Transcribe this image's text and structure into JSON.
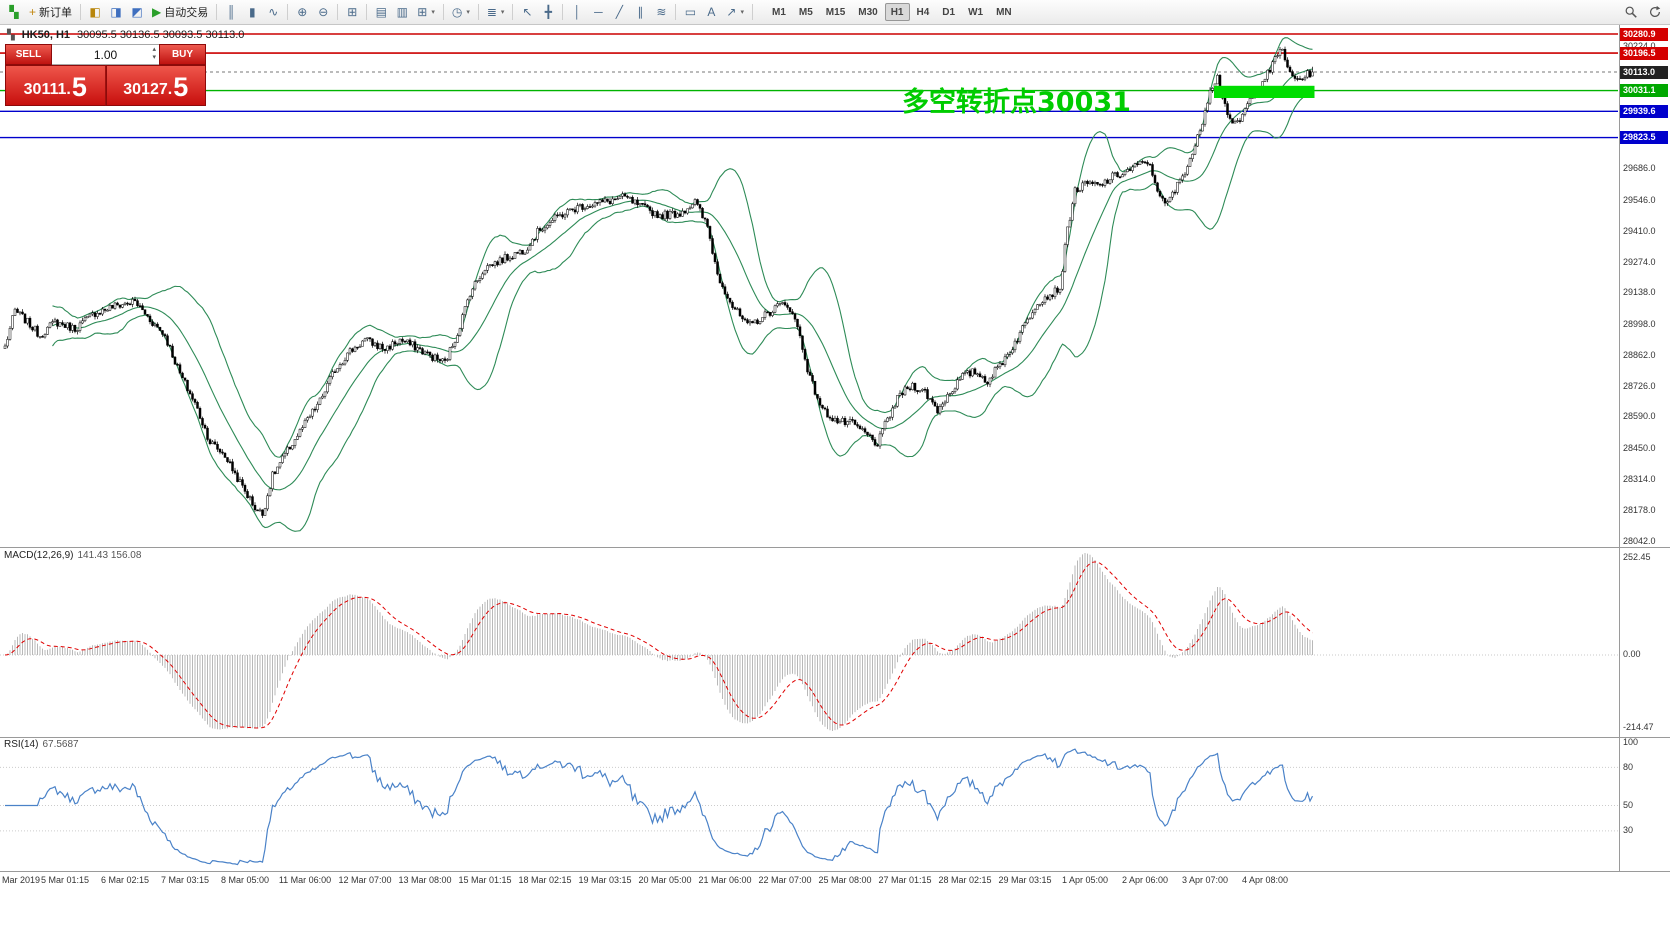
{
  "toolbar": {
    "caret_glyph": "▾",
    "items": [
      {
        "name": "terminal-icon",
        "glyph": "▚",
        "color": "#2a9f2a"
      },
      {
        "name": "new-order-button",
        "glyph": "+",
        "color": "#c28712",
        "label": "新订单"
      },
      {
        "sep": true
      },
      {
        "name": "market-watch-icon",
        "glyph": "◧",
        "color": "#b8860b"
      },
      {
        "name": "data-window-icon",
        "glyph": "◨",
        "color": "#3f6fbf"
      },
      {
        "name": "navigator-icon",
        "glyph": "◩",
        "color": "#3f6fbf"
      },
      {
        "name": "autotrade-button",
        "glyph": "▶",
        "color": "#2a9f2a",
        "label": "自动交易"
      },
      {
        "sep": true
      },
      {
        "name": "bars-chart-icon",
        "glyph": "║"
      },
      {
        "name": "candlestick-chart-icon",
        "glyph": "▮"
      },
      {
        "name": "line-chart-icon",
        "glyph": "∿"
      },
      {
        "sep": true
      },
      {
        "name": "zoom-in-icon",
        "glyph": "⊕"
      },
      {
        "name": "zoom-out-icon",
        "glyph": "⊖"
      },
      {
        "sep": true
      },
      {
        "name": "tile-windows-icon",
        "glyph": "⊞"
      },
      {
        "sep": true
      },
      {
        "name": "cascade-windows-icon",
        "glyph": "▤"
      },
      {
        "name": "arrange-windows-icon",
        "glyph": "▥"
      },
      {
        "name": "new-chart-icon",
        "glyph": "⊞",
        "caret": true
      },
      {
        "sep": true
      },
      {
        "name": "period-clock-icon",
        "glyph": "◷",
        "caret": true
      },
      {
        "sep": true
      },
      {
        "name": "indicators-icon",
        "glyph": "≣",
        "caret": true
      },
      {
        "sep": true
      },
      {
        "name": "cursor-icon",
        "glyph": "↖"
      },
      {
        "name": "crosshair-icon",
        "glyph": "╋"
      },
      {
        "sep": true
      },
      {
        "name": "vertical-line-icon",
        "glyph": "│"
      },
      {
        "name": "horizontal-line-icon",
        "glyph": "─"
      },
      {
        "name": "trendline-icon",
        "glyph": "╱"
      },
      {
        "name": "equidistant-channel-icon",
        "glyph": "∥"
      },
      {
        "name": "fibonacci-icon",
        "glyph": "≋"
      },
      {
        "sep": true
      },
      {
        "name": "shapes-icon",
        "glyph": "▭"
      },
      {
        "name": "text-label-icon",
        "glyph": "A"
      },
      {
        "name": "arrow-tools-icon",
        "glyph": "↗",
        "caret": true
      },
      {
        "sep": true
      }
    ],
    "timeframes": {
      "items": [
        "M1",
        "M5",
        "M15",
        "M30",
        "H1",
        "H4",
        "D1",
        "W1",
        "MN"
      ],
      "active": "H1"
    },
    "right_items": [
      {
        "name": "search-icon"
      },
      {
        "name": "refresh-icon"
      }
    ]
  },
  "chart_header": {
    "icon": "▚",
    "symbol": "HK50, H1",
    "ohlc": "30095.5 30136.5 30093.5 30113.0"
  },
  "order_panel": {
    "sell_label": "SELL",
    "buy_label": "BUY",
    "volume": "1.00",
    "vol_up_glyph": "▴",
    "vol_down_glyph": "▾",
    "sell_price": {
      "main": "30111.",
      "big": "5"
    },
    "buy_price": {
      "main": "30127.",
      "big": "5"
    }
  },
  "annotation": {
    "text": "多空转折点30031",
    "color": "#00cc00"
  },
  "chart_data": {
    "type": "candlestick",
    "symbol": "HK50",
    "timeframe": "H1",
    "current_ohlc": {
      "open": 30095.5,
      "high": 30136.5,
      "low": 30093.5,
      "close": 30113.0
    },
    "price_axis_ticks": [
      "30224.0",
      "29686.0",
      "29546.0",
      "29410.0",
      "29274.0",
      "29138.0",
      "28998.0",
      "28862.0",
      "28726.0",
      "28590.0",
      "28450.0",
      "28314.0",
      "28178.0",
      "28042.0"
    ],
    "level_lines": [
      {
        "price": 30280.9,
        "label": "30280.9",
        "color": "#cc0000",
        "box": "#d40000",
        "style": "solid"
      },
      {
        "price": 30196.5,
        "label": "30196.5",
        "color": "#cc0000",
        "box": "#d40000",
        "style": "solid"
      },
      {
        "price": 30113.0,
        "label": "30113.0",
        "color": "#777777",
        "box": "#222222",
        "style": "dashed"
      },
      {
        "price": 30031.1,
        "label": "30031.1",
        "color": "#00b300",
        "box": "#00a800",
        "style": "solid"
      },
      {
        "price": 29939.6,
        "label": "29939.6",
        "color": "#0000cc",
        "box": "#0000cc",
        "style": "solid"
      },
      {
        "price": 29823.5,
        "label": "29823.5",
        "color": "#0000cc",
        "box": "#0000cc",
        "style": "solid"
      }
    ],
    "highlight_zone": {
      "start_index": 484,
      "end_index": 523,
      "price_top": 30052,
      "price_bottom": 29998,
      "color": "#00dd00"
    },
    "x_labels": [
      "Mar 2019",
      "5 Mar 01:15",
      "6 Mar 02:15",
      "7 Mar 03:15",
      "8 Mar 05:00",
      "11 Mar 06:00",
      "12 Mar 07:00",
      "13 Mar 08:00",
      "15 Mar 01:15",
      "18 Mar 02:15",
      "19 Mar 03:15",
      "20 Mar 05:00",
      "21 Mar 06:00",
      "22 Mar 07:00",
      "25 Mar 08:00",
      "27 Mar 01:15",
      "28 Mar 02:15",
      "29 Mar 03:15",
      "1 Apr 05:00",
      "2 Apr 06:00",
      "3 Apr 07:00",
      "4 Apr 08:00"
    ],
    "x_label_indices": [
      0,
      24,
      48,
      72,
      96,
      120,
      144,
      168,
      192,
      216,
      240,
      264,
      288,
      312,
      336,
      360,
      384,
      408,
      432,
      456,
      480,
      504
    ],
    "candle_count": 524,
    "noise_amplitude": 18,
    "price_anchors": [
      [
        0,
        28900
      ],
      [
        4,
        29060
      ],
      [
        8,
        29020
      ],
      [
        14,
        28950
      ],
      [
        20,
        29010
      ],
      [
        28,
        28980
      ],
      [
        36,
        29050
      ],
      [
        44,
        29080
      ],
      [
        52,
        29100
      ],
      [
        58,
        29020
      ],
      [
        64,
        28950
      ],
      [
        70,
        28780
      ],
      [
        76,
        28650
      ],
      [
        82,
        28480
      ],
      [
        88,
        28420
      ],
      [
        94,
        28300
      ],
      [
        100,
        28190
      ],
      [
        103,
        28160
      ],
      [
        107,
        28330
      ],
      [
        113,
        28440
      ],
      [
        120,
        28560
      ],
      [
        126,
        28660
      ],
      [
        132,
        28800
      ],
      [
        138,
        28880
      ],
      [
        144,
        28930
      ],
      [
        152,
        28890
      ],
      [
        158,
        28930
      ],
      [
        164,
        28900
      ],
      [
        170,
        28860
      ],
      [
        176,
        28830
      ],
      [
        181,
        28960
      ],
      [
        186,
        29140
      ],
      [
        192,
        29250
      ],
      [
        200,
        29290
      ],
      [
        208,
        29330
      ],
      [
        214,
        29420
      ],
      [
        222,
        29480
      ],
      [
        230,
        29520
      ],
      [
        240,
        29540
      ],
      [
        248,
        29560
      ],
      [
        254,
        29520
      ],
      [
        262,
        29480
      ],
      [
        270,
        29490
      ],
      [
        276,
        29540
      ],
      [
        281,
        29430
      ],
      [
        285,
        29220
      ],
      [
        291,
        29080
      ],
      [
        297,
        28990
      ],
      [
        303,
        29030
      ],
      [
        309,
        29080
      ],
      [
        313,
        29090
      ],
      [
        317,
        28990
      ],
      [
        322,
        28760
      ],
      [
        327,
        28620
      ],
      [
        333,
        28570
      ],
      [
        339,
        28560
      ],
      [
        345,
        28510
      ],
      [
        349,
        28470
      ],
      [
        353,
        28580
      ],
      [
        358,
        28690
      ],
      [
        363,
        28730
      ],
      [
        368,
        28700
      ],
      [
        373,
        28620
      ],
      [
        378,
        28700
      ],
      [
        383,
        28770
      ],
      [
        388,
        28790
      ],
      [
        393,
        28750
      ],
      [
        398,
        28820
      ],
      [
        403,
        28900
      ],
      [
        408,
        29000
      ],
      [
        413,
        29100
      ],
      [
        418,
        29130
      ],
      [
        422,
        29160
      ],
      [
        425,
        29420
      ],
      [
        428,
        29590
      ],
      [
        433,
        29620
      ],
      [
        438,
        29610
      ],
      [
        443,
        29650
      ],
      [
        448,
        29670
      ],
      [
        453,
        29700
      ],
      [
        457,
        29720
      ],
      [
        461,
        29600
      ],
      [
        464,
        29520
      ],
      [
        468,
        29590
      ],
      [
        472,
        29680
      ],
      [
        476,
        29780
      ],
      [
        479,
        29900
      ],
      [
        482,
        30040
      ],
      [
        485,
        30090
      ],
      [
        488,
        29970
      ],
      [
        491,
        29870
      ],
      [
        494,
        29900
      ],
      [
        498,
        29990
      ],
      [
        502,
        30060
      ],
      [
        506,
        30120
      ],
      [
        509,
        30190
      ],
      [
        511,
        30225
      ],
      [
        513,
        30120
      ],
      [
        516,
        30080
      ],
      [
        519,
        30090
      ],
      [
        523,
        30113
      ]
    ],
    "bollinger": {
      "period": 20,
      "deviation": 2,
      "color": "#2e8b57"
    },
    "macd": {
      "label": "MACD(12,26,9)",
      "current_values": "141.43 156.08",
      "axis_max": "252.45",
      "axis_zero": "0.00",
      "axis_min": "-214.47",
      "histogram_color": "#b8b8b8",
      "signal_color": "#e00000"
    },
    "rsi": {
      "label": "RSI(14)",
      "current_value": "67.5687",
      "axis_ticks": [
        100,
        80,
        50,
        30
      ],
      "levels": [
        80,
        50,
        30
      ],
      "line_color": "#4a82c8"
    }
  }
}
